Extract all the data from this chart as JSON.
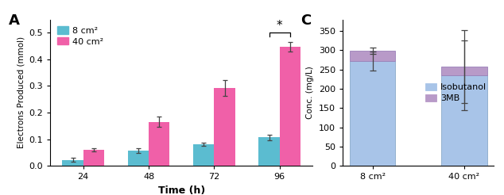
{
  "panel_A": {
    "title": "A",
    "time_points": [
      24,
      48,
      72,
      96
    ],
    "bar8_values": [
      0.022,
      0.057,
      0.08,
      0.107
    ],
    "bar8_errors": [
      0.007,
      0.008,
      0.006,
      0.01
    ],
    "bar40_values": [
      0.06,
      0.165,
      0.293,
      0.448
    ],
    "bar40_errors": [
      0.005,
      0.02,
      0.03,
      0.018
    ],
    "color8": "#5BBCD0",
    "color40": "#F060A8",
    "ylabel": "Electrons Produced (mmol)",
    "xlabel": "Time (h)",
    "ylim": [
      0,
      0.55
    ],
    "yticks": [
      0.0,
      0.1,
      0.2,
      0.3,
      0.4,
      0.5
    ],
    "legend_labels": [
      "8 cm²",
      "40 cm²"
    ],
    "sig_star": "*"
  },
  "panel_C": {
    "title": "C",
    "categories": [
      "8 cm²",
      "40 cm²"
    ],
    "isobutanol_values": [
      272,
      235
    ],
    "mb3_values": [
      27,
      22
    ],
    "isobutanol_errors": [
      25,
      90
    ],
    "total_errors": [
      8,
      95
    ],
    "color_isobutanol": "#A8C4E8",
    "color_3mb": "#B89AC8",
    "ylabel": "Conc. (mg/L)",
    "ylim": [
      0,
      380
    ],
    "yticks": [
      0,
      50,
      100,
      150,
      200,
      250,
      300,
      350
    ],
    "legend_labels": [
      "Isobutanol",
      "3MB"
    ]
  }
}
